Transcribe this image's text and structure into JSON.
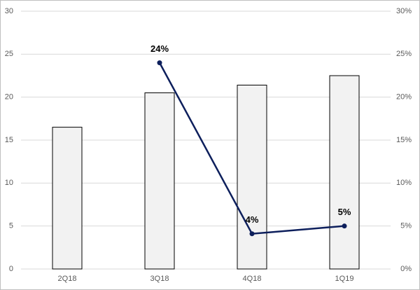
{
  "chart_data": {
    "type": "bar-line",
    "categories": [
      "2Q18",
      "3Q18",
      "4Q18",
      "1Q19"
    ],
    "series": [
      {
        "type": "bar",
        "color": "#f2f2f2",
        "values": [
          16.5,
          20.5,
          21.4,
          22.5
        ]
      },
      {
        "type": "line",
        "axis": "y2",
        "color": "#0d1f5c",
        "values": [
          null,
          24,
          4.1,
          5
        ],
        "value_labels": [
          null,
          "24%",
          "4%",
          "5%"
        ]
      }
    ],
    "ylim": [
      0,
      30
    ],
    "yticks": [
      0,
      5,
      10,
      15,
      20,
      25,
      30
    ],
    "y2lim": [
      0,
      30
    ],
    "y2ticks": [
      {
        "value": 0,
        "label": "0%"
      },
      {
        "value": 5,
        "label": "5%"
      },
      {
        "value": 10,
        "label": "10%"
      },
      {
        "value": 15,
        "label": "15%"
      },
      {
        "value": 20,
        "label": "20%"
      },
      {
        "value": 25,
        "label": "25%"
      },
      {
        "value": 30,
        "label": "30%"
      }
    ],
    "grid": true
  }
}
